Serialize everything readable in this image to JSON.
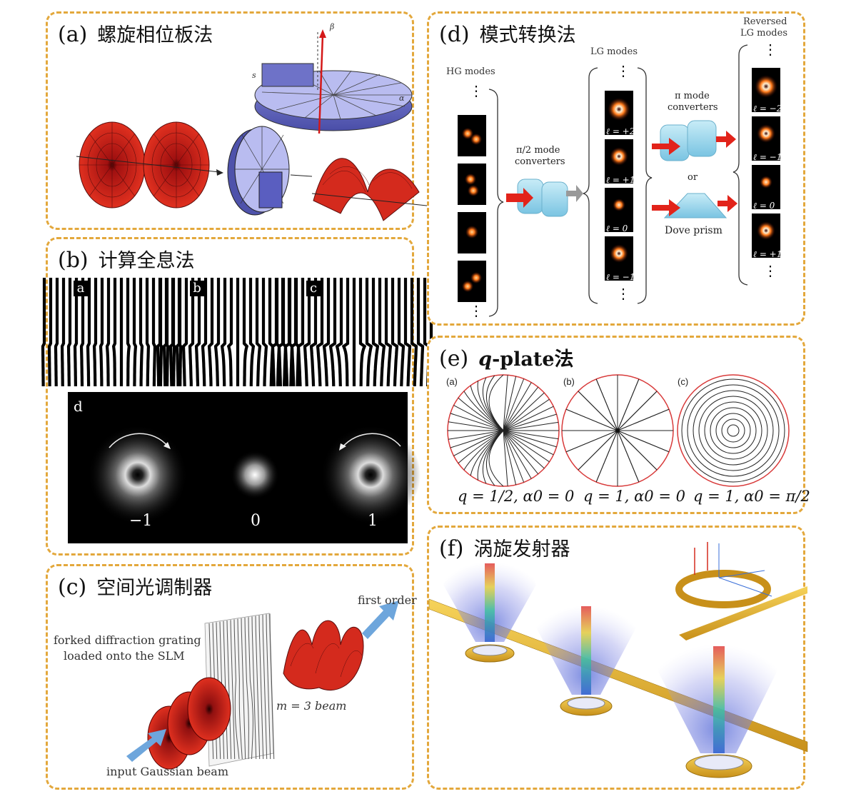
{
  "panel_a": {
    "letter": "(a)",
    "title": "螺旋相位板法"
  },
  "panel_b": {
    "letter": "(b)",
    "title": "计算全息法",
    "gratings": [
      "a",
      "b",
      "c"
    ],
    "result_label": "d",
    "orders": [
      "−1",
      "0",
      "1"
    ]
  },
  "panel_c": {
    "letter": "(c)",
    "title": "空间光调制器",
    "first_order": "first order",
    "grating_text_1": "forked diffraction grating",
    "grating_text_2": "loaded onto the SLM",
    "beam_label": "m = 3 beam",
    "input_label": "input Gaussian beam"
  },
  "panel_d": {
    "letter": "(d)",
    "title": "模式转换法",
    "hg_modes": "HG modes",
    "lg_modes": "LG modes",
    "reversed_1": "Reversed",
    "reversed_2": "LG modes",
    "pi2_label": "π/2 mode",
    "pi2_label2": "converters",
    "pi_label": "π mode",
    "pi_label2": "converters",
    "or_text": "or",
    "dove": "Dove prism",
    "lg_tiles": [
      "ℓ = +2",
      "ℓ = +1",
      "ℓ = 0",
      "ℓ = −1"
    ],
    "rev_tiles": [
      "ℓ = −2",
      "ℓ = −1",
      "ℓ = 0",
      "ℓ = +1"
    ]
  },
  "panel_e": {
    "letter": "(e)",
    "title_q": "q",
    "title_rest": "-plate法",
    "sub": [
      "(a)",
      "(b)",
      "(c)"
    ],
    "captions": [
      "q = 1/2, α0 = 0",
      "q = 1, α0 = 0",
      "q = 1, α0 = π/2"
    ]
  },
  "panel_f": {
    "letter": "(f)",
    "title": "涡旋发射器"
  },
  "colors": {
    "border": "#e3a83c",
    "plate_red": "#d42a1d",
    "plate_blue": "#8b8fd6",
    "tile_orange": "#ff8a2a",
    "converter_blue": "#8fd0ea",
    "arrow_red": "#e2231a",
    "ring_gold": "#e8b821",
    "qplate_border": "#d83a3a"
  }
}
